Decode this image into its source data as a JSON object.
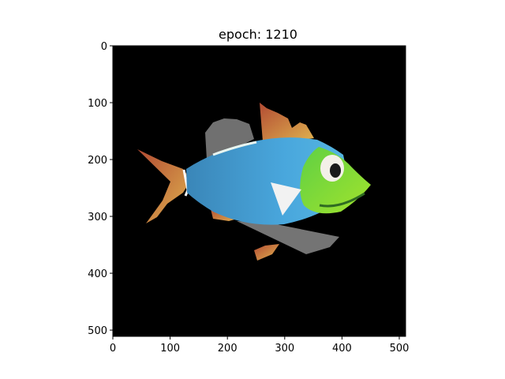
{
  "chart_data": {
    "type": "image",
    "title": "epoch: 1210",
    "xlim": [
      0,
      511
    ],
    "ylim": [
      511,
      0
    ],
    "x_ticks": [
      0,
      100,
      200,
      300,
      400,
      500
    ],
    "y_ticks": [
      0,
      100,
      200,
      300,
      400,
      500
    ],
    "grid": false,
    "image_content": "fish-render-on-black",
    "colors": {
      "background": "#000000",
      "body_blue": "#3f9fd8",
      "head_green": "#7bd63a",
      "fin_orange": "#c9794a",
      "shadow_gray": "#7a7a7a"
    }
  }
}
